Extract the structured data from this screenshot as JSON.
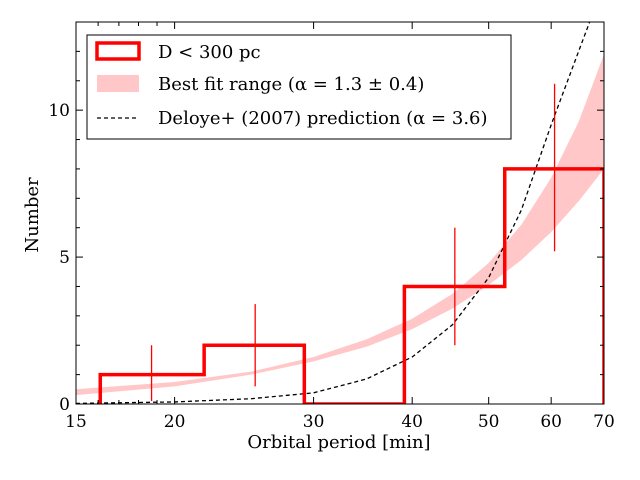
{
  "chart_data": {
    "type": "histogram",
    "x_scale": "log",
    "xlim": [
      15,
      70
    ],
    "ylim": [
      0,
      13
    ],
    "xlabel": "Orbital period [min]",
    "ylabel": "Number",
    "x_ticks": [
      15,
      20,
      30,
      40,
      50,
      60,
      70
    ],
    "y_ticks": [
      0,
      5,
      10
    ],
    "grid": false,
    "legend_position": "top-left",
    "colors": {
      "histogram": "#ff0000",
      "fit_band": "#ff9999",
      "prediction": "#000000"
    },
    "histogram": {
      "label": "D < 300 pc",
      "bin_edges": [
        16.1,
        21.8,
        29.2,
        39.1,
        52.4,
        70.0
      ],
      "counts": [
        1,
        2,
        0,
        4,
        8
      ]
    },
    "error_bars": [
      {
        "x": 18.7,
        "y": 1,
        "low": 0.1,
        "high": 2.0
      },
      {
        "x": 25.3,
        "y": 2,
        "low": 0.6,
        "high": 3.4
      },
      {
        "x": 45.3,
        "y": 4,
        "low": 2.0,
        "high": 6.0
      },
      {
        "x": 60.6,
        "y": 8,
        "low": 5.2,
        "high": 10.9
      }
    ],
    "fit_band": {
      "label": "Best fit range (α = 1.3 ± 0.4)",
      "x": [
        15,
        20,
        25,
        30,
        35,
        40,
        45,
        50,
        55,
        60,
        65,
        70
      ],
      "lower": [
        0.3,
        0.6,
        1.0,
        1.45,
        1.95,
        2.55,
        3.25,
        4.05,
        4.9,
        5.85,
        6.9,
        8.0
      ],
      "upper": [
        0.5,
        0.75,
        1.1,
        1.6,
        2.2,
        2.9,
        3.75,
        4.8,
        6.1,
        7.7,
        9.6,
        11.9
      ]
    },
    "prediction": {
      "label": "Deloye+ (2007) prediction (α = 3.6)",
      "x": [
        15,
        20,
        25,
        30,
        35,
        40,
        45,
        50,
        55,
        60,
        65,
        68
      ],
      "y": [
        0.02,
        0.07,
        0.18,
        0.38,
        0.85,
        1.6,
        2.7,
        4.3,
        6.6,
        9.5,
        12.0,
        13.4
      ]
    }
  }
}
